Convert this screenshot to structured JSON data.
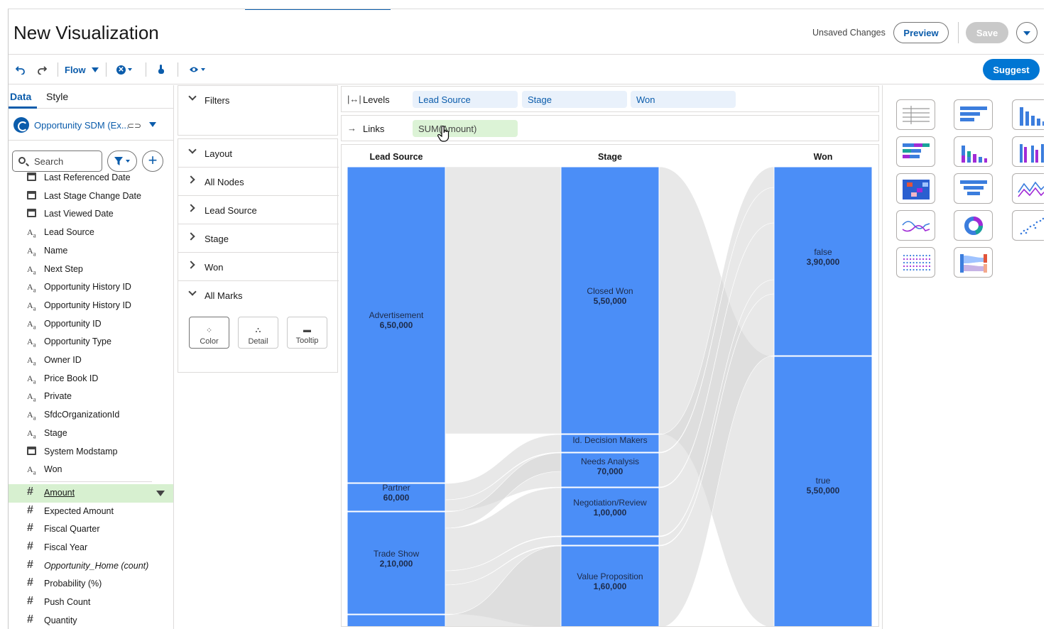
{
  "header": {
    "title": "New Visualization",
    "unsaved": "Unsaved Changes",
    "preview_label": "Preview",
    "save_label": "Save"
  },
  "toolbar": {
    "flow_label": "Flow",
    "suggest_label": "Suggest"
  },
  "left": {
    "tabs": [
      "Data",
      "Style"
    ],
    "datasource": "Opportunity SDM (Ex...",
    "search_placeholder": "Search",
    "fields": [
      {
        "icon": "calendar-icon",
        "label": "Last Referenced Date"
      },
      {
        "icon": "calendar-icon",
        "label": "Last Stage Change Date"
      },
      {
        "icon": "calendar-icon",
        "label": "Last Viewed Date"
      },
      {
        "icon": "text-field-icon",
        "label": "Lead Source"
      },
      {
        "icon": "text-field-icon",
        "label": "Name"
      },
      {
        "icon": "text-field-icon",
        "label": "Next Step"
      },
      {
        "icon": "text-field-icon",
        "label": "Opportunity History ID"
      },
      {
        "icon": "text-field-icon",
        "label": "Opportunity History ID"
      },
      {
        "icon": "text-field-icon",
        "label": "Opportunity ID"
      },
      {
        "icon": "text-field-icon",
        "label": "Opportunity Type"
      },
      {
        "icon": "text-field-icon",
        "label": "Owner ID"
      },
      {
        "icon": "text-field-icon",
        "label": "Price Book ID"
      },
      {
        "icon": "text-field-icon",
        "label": "Private"
      },
      {
        "icon": "text-field-icon",
        "label": "SfdcOrganizationId"
      },
      {
        "icon": "text-field-icon",
        "label": "Stage"
      },
      {
        "icon": "calendar-icon",
        "label": "System Modstamp"
      },
      {
        "icon": "text-field-icon",
        "label": "Won"
      }
    ],
    "measures": [
      {
        "label": "Amount",
        "selected": true
      },
      {
        "label": "Expected Amount"
      },
      {
        "label": "Fiscal Quarter"
      },
      {
        "label": "Fiscal Year"
      },
      {
        "label": "Opportunity_Home (count)",
        "italic": true
      },
      {
        "label": "Probability (%)"
      },
      {
        "label": "Push Count"
      },
      {
        "label": "Quantity"
      }
    ]
  },
  "middle": {
    "filters": "Filters",
    "layout": "Layout",
    "sections": [
      "All Nodes",
      "Lead Source",
      "Stage",
      "Won"
    ],
    "all_marks": "All Marks",
    "marks": [
      "Color",
      "Detail",
      "Tooltip"
    ]
  },
  "shelves": {
    "levels_label": "Levels",
    "levels": [
      "Lead Source",
      "Stage",
      "Won"
    ],
    "links_label": "Links",
    "links": [
      "SUM(Amount)"
    ]
  },
  "chart_data": {
    "type": "sankey",
    "levels": [
      "Lead Source",
      "Stage",
      "Won"
    ],
    "node_color": "#4b8ef7",
    "link_color": "#d6d6d6",
    "nodes": [
      {
        "level": 0,
        "name": "Advertisement",
        "value": "6,50,000"
      },
      {
        "level": 0,
        "name": "Partner",
        "value": "60,000"
      },
      {
        "level": 0,
        "name": "Trade Show",
        "value": "2,10,000"
      },
      {
        "level": 0,
        "name": "",
        "value": ""
      },
      {
        "level": 1,
        "name": "Closed Won",
        "value": "5,50,000"
      },
      {
        "level": 1,
        "name": "Id. Decision Makers",
        "value": ""
      },
      {
        "level": 1,
        "name": "Needs Analysis",
        "value": "70,000"
      },
      {
        "level": 1,
        "name": "Negotiation/Review",
        "value": "1,00,000"
      },
      {
        "level": 1,
        "name": "",
        "value": ""
      },
      {
        "level": 1,
        "name": "Value Proposition",
        "value": "1,60,000"
      },
      {
        "level": 2,
        "name": "false",
        "value": "3,90,000"
      },
      {
        "level": 2,
        "name": "true",
        "value": "5,50,000"
      }
    ]
  },
  "colors": {
    "brand": "#0b5cab",
    "suggest": "#0176d3",
    "node": "#4b8ef7",
    "selected_field": "#d7f0d0"
  }
}
